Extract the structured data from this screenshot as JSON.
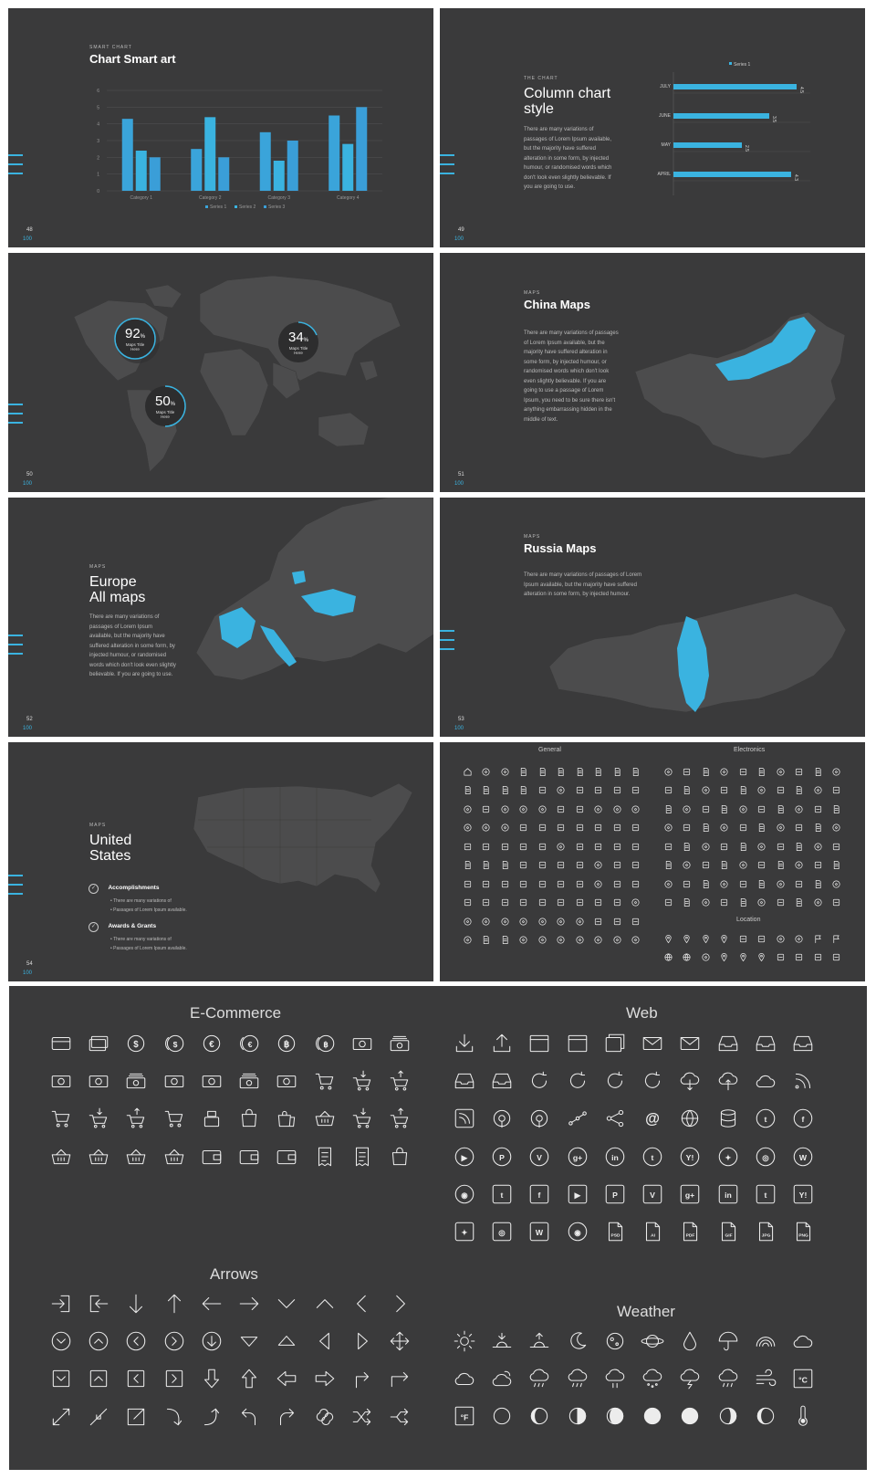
{
  "slides": {
    "s48": {
      "kicker": "SMART CHART",
      "title": "Chart Smart art",
      "page": "48",
      "total": "100"
    },
    "s49": {
      "kicker": "THE CHART",
      "title_line1": "Column chart",
      "title_line2": "style",
      "body": "There are many variations of passages of Lorem Ipsum available, but the majority have suffered alteration in some form, by injected humour, or randomised words which don't look even slightly believable. If you are going to use.",
      "page": "49",
      "total": "100"
    },
    "s50": {
      "circles": [
        {
          "value": "92",
          "unit": "%",
          "label1": "Maps Title",
          "label2": "Here"
        },
        {
          "value": "34",
          "unit": "%",
          "label1": "Maps Title",
          "label2": "Here"
        },
        {
          "value": "50",
          "unit": "%",
          "label1": "Maps Title",
          "label2": "Here"
        }
      ],
      "page": "50",
      "total": "100"
    },
    "s51": {
      "kicker": "MAPS",
      "title": "China Maps",
      "body": "There are many variations of passages of Lorem Ipsum available, but the majority have suffered alteration in some form, by injected humour, or randomised words which don't look even slightly believable. If you are going to use a passage of Lorem Ipsum, you need to be sure there isn't anything embarrassing hidden in the middle of text.",
      "page": "51",
      "total": "100"
    },
    "s52": {
      "kicker": "MAPS",
      "title_line1": "Europe",
      "title_line2": "All maps",
      "body": "There are many variations of passages of Lorem Ipsum available, but the majority have suffered alteration in some form, by injected humour, or randomised words which don't look even slightly believable. If you are going to use.",
      "page": "52",
      "total": "100"
    },
    "s53": {
      "kicker": "MAPS",
      "title": "Russia Maps",
      "body": "There are many variations of passages of Lorem Ipsum available, but the majority have suffered alteration in some form, by injected humour.",
      "page": "53",
      "total": "100"
    },
    "s54": {
      "kicker": "MAPS",
      "title_line1": "United",
      "title_line2": "States",
      "items": [
        {
          "title": "Accomplishments",
          "bullets": [
            "There are many variations of",
            "Passages of Lorem Ipsum available."
          ]
        },
        {
          "title": "Awards & Grants",
          "bullets": [
            "There are many variations of",
            "Passages of Lorem Ipsum available."
          ]
        }
      ],
      "page": "54",
      "total": "100"
    },
    "s55": {
      "general_title": "General",
      "electronics_title": "Electronics",
      "location_title": "Location"
    }
  },
  "icons_panel": {
    "ecommerce_title": "E-Commerce",
    "web_title": "Web",
    "arrows_title": "Arrows",
    "weather_title": "Weather",
    "currency_glyphs": [
      "$",
      "$",
      "€",
      "€",
      "฿",
      "฿"
    ],
    "social_glyphs": [
      "f",
      "g+",
      "in",
      "t",
      "Y!",
      "P",
      "V"
    ],
    "file_labels": [
      "PSD",
      "AI",
      "PDF",
      "GIF",
      "JPG",
      "PNG"
    ],
    "temp_c": "°C",
    "temp_f": "°F"
  },
  "colors": {
    "accent": "#3ab3e0",
    "slide_bg": "#3a3a3b",
    "map_gray": "#4c4c4d"
  },
  "chart_data": [
    {
      "type": "bar",
      "title": "Chart Smart art",
      "categories": [
        "Category 1",
        "Category 2",
        "Category 3",
        "Category 4"
      ],
      "series": [
        {
          "name": "Series 1",
          "values": [
            4.3,
            2.5,
            3.5,
            4.5
          ]
        },
        {
          "name": "Series 2",
          "values": [
            2.4,
            4.4,
            1.8,
            2.8
          ]
        },
        {
          "name": "Series 3",
          "values": [
            2.0,
            2.0,
            3.0,
            5.0
          ]
        }
      ],
      "yticks": [
        "0",
        "1",
        "2",
        "3",
        "4",
        "5",
        "6"
      ],
      "ylim": [
        0,
        6
      ],
      "grid": true,
      "legend": "bottom"
    },
    {
      "type": "bar",
      "orientation": "horizontal",
      "title": "Column chart style",
      "categories": [
        "JULY",
        "JUNE",
        "MAY",
        "APRIL"
      ],
      "series": [
        {
          "name": "Series 1",
          "values": [
            4.5,
            3.5,
            2.5,
            4.3
          ]
        }
      ],
      "value_labels": [
        "4.5",
        "3.5",
        "2.5",
        "4.3"
      ],
      "xlim": [
        0,
        5
      ],
      "legend": "top"
    }
  ]
}
